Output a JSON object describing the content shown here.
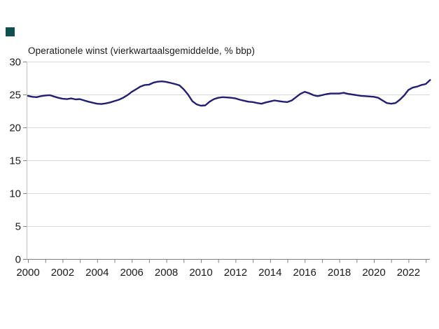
{
  "colors": {
    "brand_square": "#0f4f4f",
    "line": "#221f72",
    "grid": "#d9d9d9",
    "axis": "#808080",
    "y_axis_line": "#c0c0c0",
    "tick_label": "#1a1a1a",
    "background": "#ffffff"
  },
  "chart_data": {
    "type": "line",
    "title": "Operationele winst (vierkwartaalsgemiddelde, % bbp)",
    "xlabel": "",
    "ylabel": "",
    "ylim": [
      0,
      30
    ],
    "yticks": [
      0,
      5,
      10,
      15,
      20,
      25,
      30
    ],
    "x_range": [
      2000,
      2023.25
    ],
    "xtick_minor_years": [
      2000,
      2001,
      2002,
      2003,
      2004,
      2005,
      2006,
      2007,
      2008,
      2009,
      2010,
      2011,
      2012,
      2013,
      2014,
      2015,
      2016,
      2017,
      2018,
      2019,
      2020,
      2021,
      2022,
      2023
    ],
    "xtick_label_years": [
      2000,
      2002,
      2004,
      2006,
      2008,
      2010,
      2012,
      2014,
      2016,
      2018,
      2020,
      2022
    ],
    "xtick_labels": [
      "2000",
      "2002",
      "2004",
      "2006",
      "2008",
      "2010",
      "2012",
      "2014",
      "2016",
      "2018",
      "2020",
      "2022"
    ],
    "grid": "horizontal",
    "legend_position": "none",
    "x": [
      2000,
      2000.25,
      2000.5,
      2000.75,
      2001,
      2001.25,
      2001.5,
      2001.75,
      2002,
      2002.25,
      2002.5,
      2002.75,
      2003,
      2003.25,
      2003.5,
      2003.75,
      2004,
      2004.25,
      2004.5,
      2004.75,
      2005,
      2005.25,
      2005.5,
      2005.75,
      2006,
      2006.25,
      2006.5,
      2006.75,
      2007,
      2007.25,
      2007.5,
      2007.75,
      2008,
      2008.25,
      2008.5,
      2008.75,
      2009,
      2009.25,
      2009.5,
      2009.75,
      2010,
      2010.25,
      2010.5,
      2010.75,
      2011,
      2011.25,
      2011.5,
      2011.75,
      2012,
      2012.25,
      2012.5,
      2012.75,
      2013,
      2013.25,
      2013.5,
      2013.75,
      2014,
      2014.25,
      2014.5,
      2014.75,
      2015,
      2015.25,
      2015.5,
      2015.75,
      2016,
      2016.25,
      2016.5,
      2016.75,
      2017,
      2017.25,
      2017.5,
      2017.75,
      2018,
      2018.25,
      2018.5,
      2018.75,
      2019,
      2019.25,
      2019.5,
      2019.75,
      2020,
      2020.25,
      2020.5,
      2020.75,
      2021,
      2021.25,
      2021.5,
      2021.75,
      2022,
      2022.25,
      2022.5,
      2022.75,
      2023,
      2023.25
    ],
    "series": [
      {
        "name": "Operationele winst (vierkwartaalsgemiddelde, % bbp)",
        "values": [
          24.8,
          24.65,
          24.6,
          24.75,
          24.85,
          24.9,
          24.7,
          24.5,
          24.35,
          24.3,
          24.4,
          24.25,
          24.3,
          24.1,
          23.9,
          23.75,
          23.6,
          23.55,
          23.65,
          23.8,
          24.0,
          24.2,
          24.5,
          24.9,
          25.4,
          25.8,
          26.2,
          26.45,
          26.5,
          26.8,
          26.95,
          27.0,
          26.9,
          26.75,
          26.6,
          26.4,
          25.8,
          25.0,
          24.0,
          23.5,
          23.3,
          23.35,
          23.9,
          24.3,
          24.5,
          24.6,
          24.55,
          24.5,
          24.4,
          24.2,
          24.05,
          23.9,
          23.85,
          23.7,
          23.6,
          23.8,
          23.95,
          24.1,
          24.0,
          23.9,
          23.85,
          24.1,
          24.6,
          25.1,
          25.4,
          25.2,
          24.9,
          24.75,
          24.9,
          25.05,
          25.15,
          25.15,
          25.15,
          25.25,
          25.1,
          25.0,
          24.9,
          24.8,
          24.75,
          24.7,
          24.65,
          24.5,
          24.1,
          23.7,
          23.6,
          23.7,
          24.2,
          24.85,
          25.7,
          26.05,
          26.2,
          26.45,
          26.6,
          27.2
        ]
      }
    ]
  }
}
